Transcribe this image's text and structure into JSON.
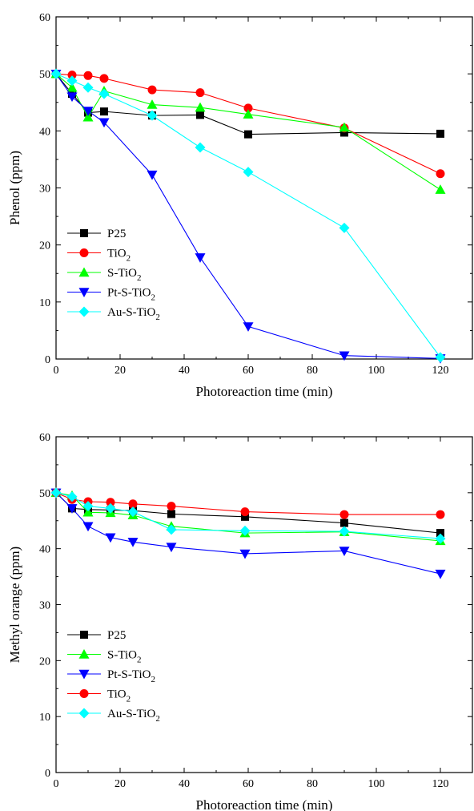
{
  "chart_data": [
    {
      "type": "line",
      "title": "",
      "xlabel": "Photoreaction time (min)",
      "ylabel": "Phenol (ppm)",
      "xlim": [
        0,
        130
      ],
      "ylim": [
        0,
        60
      ],
      "xticks": [
        0,
        20,
        40,
        60,
        80,
        100,
        120
      ],
      "yticks": [
        0,
        10,
        20,
        30,
        40,
        50,
        60
      ],
      "legend_position": "bottom-left",
      "series": [
        {
          "name": "P25",
          "label_main": "P25",
          "label_sub": "",
          "color": "#000000",
          "marker": "square",
          "x": [
            0,
            5,
            10,
            15,
            30,
            45,
            60,
            90,
            120
          ],
          "y": [
            50,
            46.5,
            43.2,
            43.4,
            42.7,
            42.8,
            39.4,
            39.7,
            39.5
          ]
        },
        {
          "name": "TiO2",
          "label_main": "TiO",
          "label_sub": "2",
          "color": "#ff0000",
          "marker": "circle",
          "x": [
            0,
            5,
            10,
            15,
            30,
            45,
            60,
            90,
            120
          ],
          "y": [
            50,
            49.8,
            49.7,
            49.2,
            47.2,
            46.7,
            44,
            40.5,
            32.5
          ]
        },
        {
          "name": "S-TiO2",
          "label_main": "S-TiO",
          "label_sub": "2",
          "color": "#00ff00",
          "marker": "triangle-up",
          "x": [
            0,
            5,
            10,
            15,
            30,
            45,
            60,
            90,
            120
          ],
          "y": [
            50,
            47.6,
            42.4,
            47,
            44.6,
            44.1,
            42.9,
            40.6,
            29.7
          ]
        },
        {
          "name": "Pt-S-TiO2",
          "label_main": "Pt-S-TiO",
          "label_sub": "2",
          "color": "#0000ff",
          "marker": "triangle-down",
          "x": [
            0,
            5,
            10,
            15,
            30,
            45,
            60,
            90,
            120
          ],
          "y": [
            50,
            46,
            43.5,
            41.5,
            32.3,
            17.8,
            5.7,
            0.6,
            0.1
          ]
        },
        {
          "name": "Au-S-TiO2",
          "label_main": "Au-S-TiO",
          "label_sub": "2",
          "color": "#00ffff",
          "marker": "diamond",
          "x": [
            0,
            5,
            10,
            15,
            30,
            45,
            60,
            90,
            120
          ],
          "y": [
            50,
            48.8,
            47.6,
            46.5,
            42.7,
            37.1,
            32.8,
            23,
            0.3
          ]
        }
      ]
    },
    {
      "type": "line",
      "title": "",
      "xlabel": "Photoreaction time (min)",
      "ylabel": "Methyl orange (ppm)",
      "xlim": [
        0,
        130
      ],
      "ylim": [
        0,
        60
      ],
      "xticks": [
        0,
        20,
        40,
        60,
        80,
        100,
        120
      ],
      "yticks": [
        0,
        10,
        20,
        30,
        40,
        50,
        60
      ],
      "legend_position": "bottom-left",
      "series": [
        {
          "name": "P25",
          "label_main": "P25",
          "label_sub": "",
          "color": "#000000",
          "marker": "square",
          "x": [
            0,
            5,
            10,
            17,
            24,
            36,
            59,
            90,
            120
          ],
          "y": [
            50,
            47.2,
            47,
            46.9,
            46.8,
            46.2,
            45.7,
            44.6,
            42.8
          ]
        },
        {
          "name": "S-TiO2",
          "label_main": "S-TiO",
          "label_sub": "2",
          "color": "#00ff00",
          "marker": "triangle-up",
          "x": [
            0,
            5,
            10,
            17,
            24,
            36,
            59,
            90,
            120
          ],
          "y": [
            50,
            49.5,
            46.5,
            46.4,
            46,
            44,
            42.8,
            43,
            41.4
          ]
        },
        {
          "name": "Pt-S-TiO2",
          "label_main": "Pt-S-TiO",
          "label_sub": "2",
          "color": "#0000ff",
          "marker": "triangle-down",
          "x": [
            0,
            5,
            10,
            17,
            24,
            36,
            59,
            90,
            120
          ],
          "y": [
            50,
            47.2,
            44,
            42,
            41.2,
            40.3,
            39.1,
            39.6,
            35.5
          ]
        },
        {
          "name": "TiO2",
          "label_main": "TiO",
          "label_sub": "2",
          "color": "#ff0000",
          "marker": "circle",
          "x": [
            0,
            5,
            10,
            17,
            24,
            36,
            59,
            90,
            120
          ],
          "y": [
            50,
            48.8,
            48.4,
            48.3,
            48,
            47.6,
            46.6,
            46.1,
            46.1
          ]
        },
        {
          "name": "Au-S-TiO2",
          "label_main": "Au-S-TiO",
          "label_sub": "2",
          "color": "#00ffff",
          "marker": "diamond",
          "x": [
            0,
            5,
            10,
            17,
            24,
            36,
            59,
            90,
            120
          ],
          "y": [
            50,
            49.3,
            47.6,
            47.2,
            46.6,
            43.4,
            43.2,
            43.1,
            41.8
          ]
        }
      ]
    }
  ]
}
